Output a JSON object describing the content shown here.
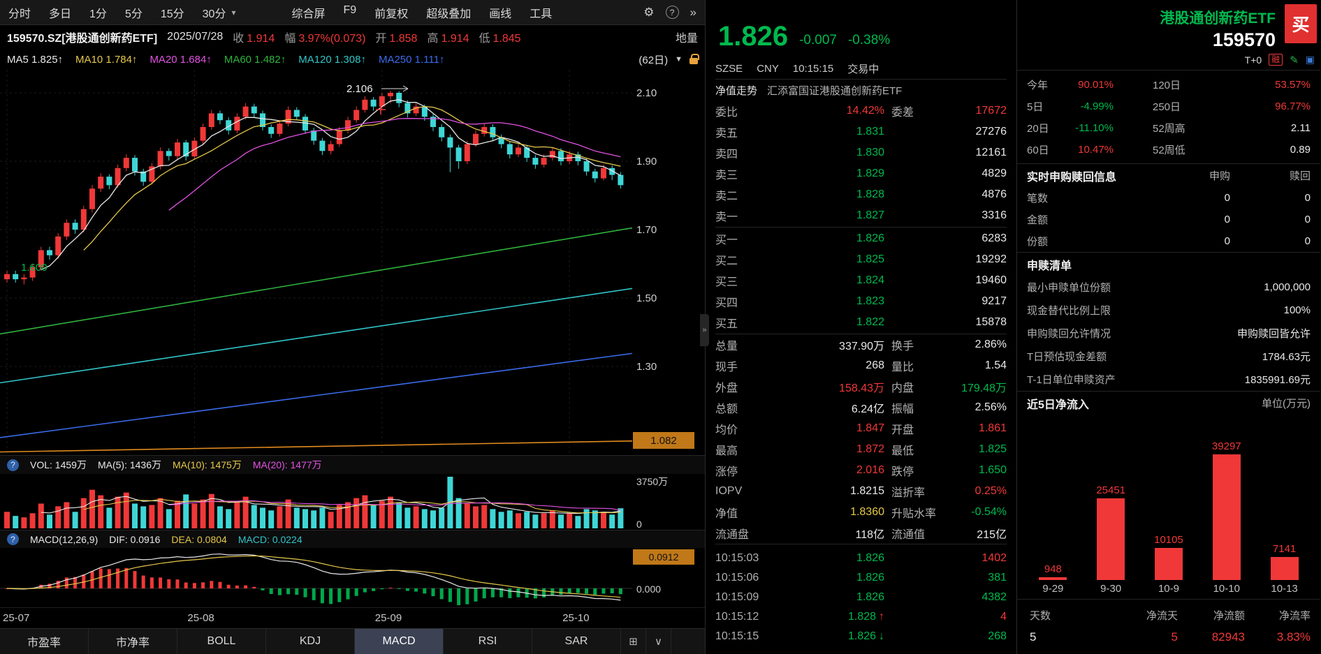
{
  "colors": {
    "up": "#f03838",
    "down": "#00b94e",
    "candle_down": "#3fd6d6",
    "ma5": "#e8e8e8",
    "ma10": "#e6c84a",
    "ma20": "#e352e3",
    "ma60": "#2eb33c",
    "ma120": "#31c5c9",
    "ma250": "#3a6bea",
    "cost_line": "#e08a1e",
    "badge_bg": "#c07818"
  },
  "toolbar": {
    "periods": [
      "分时",
      "多日",
      "1分",
      "5分",
      "15分",
      "30分"
    ],
    "tools": [
      "综合屏",
      "F9",
      "前复权",
      "超级叠加",
      "画线",
      "工具"
    ],
    "overflow": "»"
  },
  "info_bar": {
    "symbol": "159570.SZ[港股通创新药ETF]",
    "date": "2025/07/28",
    "fields": [
      {
        "label": "收",
        "value": "1.914"
      },
      {
        "label": "幅",
        "value": "3.97%(0.073)"
      },
      {
        "label": "开",
        "value": "1.858"
      },
      {
        "label": "高",
        "value": "1.914"
      },
      {
        "label": "低",
        "value": "1.845"
      }
    ],
    "tail": "地量"
  },
  "ma_bar": {
    "items": [
      {
        "label": "MA5",
        "value": "1.825↑",
        "color": "#e8e8e8"
      },
      {
        "label": "MA10",
        "value": "1.784↑",
        "color": "#e6c84a"
      },
      {
        "label": "MA20",
        "value": "1.684↑",
        "color": "#e352e3"
      },
      {
        "label": "MA60",
        "value": "1.482↑",
        "color": "#2eb33c"
      },
      {
        "label": "MA120",
        "value": "1.308↑",
        "color": "#31c5c9"
      },
      {
        "label": "MA250",
        "value": "1.111↑",
        "color": "#3a6bea"
      }
    ],
    "range_label": "(62日)"
  },
  "vol_header": {
    "label": "VOL:",
    "value": "1459万",
    "ma_items": [
      {
        "label": "MA(5):",
        "value": "1436万",
        "color": "#e8e8e8"
      },
      {
        "label": "MA(10):",
        "value": "1475万",
        "color": "#e6c84a"
      },
      {
        "label": "MA(20):",
        "value": "1477万",
        "color": "#e352e3"
      }
    ]
  },
  "macd_header": {
    "name": "MACD(12,26,9)",
    "items": [
      {
        "label": "DIF:",
        "value": "0.0916",
        "color": "#e8e8e8"
      },
      {
        "label": "DEA:",
        "value": "0.0804",
        "color": "#e6c84a"
      },
      {
        "label": "MACD:",
        "value": "0.0224",
        "color": "#31c5c9"
      }
    ]
  },
  "tabs": {
    "items": [
      "市盈率",
      "市净率",
      "BOLL",
      "KDJ",
      "MACD",
      "RSI",
      "SAR"
    ],
    "active": "MACD"
  },
  "chart_data": [
    {
      "type": "candlestick",
      "title": "港股通创新药ETF 日K线",
      "x_ticks": [
        {
          "label": "25-07",
          "index": 0
        },
        {
          "label": "25-08",
          "index": 22
        },
        {
          "label": "25-09",
          "index": 44
        },
        {
          "label": "25-10",
          "index": 66
        }
      ],
      "y_ticks": [
        2.1,
        1.9,
        1.7,
        1.5,
        1.3
      ],
      "annotations": {
        "peak": "2.106",
        "low_marker": "1.600",
        "cost_badge": "1.082"
      },
      "overlays": [
        {
          "name": "MA60",
          "color": "#2eb33c",
          "from": 1.395,
          "to": 1.705
        },
        {
          "name": "MA120",
          "color": "#31c5c9",
          "from": 1.252,
          "to": 1.528
        },
        {
          "name": "MA250",
          "color": "#3a6bea",
          "from": 1.092,
          "to": 1.338
        },
        {
          "name": "成本线",
          "color": "#e08a1e",
          "from": 1.05,
          "to": 1.082
        }
      ],
      "candles": [
        [
          1.555,
          1.58,
          1.545,
          1.57
        ],
        [
          1.57,
          1.58,
          1.545,
          1.555
        ],
        [
          1.555,
          1.57,
          1.54,
          1.56
        ],
        [
          1.56,
          1.6,
          1.55,
          1.59
        ],
        [
          1.59,
          1.65,
          1.58,
          1.64
        ],
        [
          1.64,
          1.65,
          1.612,
          1.625
        ],
        [
          1.625,
          1.69,
          1.615,
          1.68
        ],
        [
          1.68,
          1.73,
          1.67,
          1.72
        ],
        [
          1.72,
          1.73,
          1.688,
          1.7
        ],
        [
          1.7,
          1.77,
          1.692,
          1.76
        ],
        [
          1.76,
          1.83,
          1.75,
          1.82
        ],
        [
          1.82,
          1.865,
          1.81,
          1.855
        ],
        [
          1.855,
          1.862,
          1.818,
          1.83
        ],
        [
          1.83,
          1.89,
          1.822,
          1.88
        ],
        [
          1.88,
          1.92,
          1.87,
          1.91
        ],
        [
          1.91,
          1.918,
          1.858,
          1.87
        ],
        [
          1.87,
          1.878,
          1.828,
          1.84
        ],
        [
          1.84,
          1.895,
          1.832,
          1.885
        ],
        [
          1.885,
          1.94,
          1.876,
          1.93
        ],
        [
          1.93,
          1.938,
          1.902,
          1.915
        ],
        [
          1.915,
          1.965,
          1.906,
          1.955
        ],
        [
          1.955,
          1.962,
          1.902,
          1.914
        ],
        [
          1.914,
          1.97,
          1.906,
          1.96
        ],
        [
          1.96,
          2.01,
          1.95,
          2.0
        ],
        [
          2.0,
          2.05,
          1.992,
          2.04
        ],
        [
          2.04,
          2.048,
          2.008,
          2.02
        ],
        [
          2.02,
          2.028,
          1.978,
          1.99
        ],
        [
          1.99,
          2.04,
          1.982,
          2.03
        ],
        [
          2.03,
          2.07,
          2.022,
          2.06
        ],
        [
          2.06,
          2.068,
          2.028,
          2.04
        ],
        [
          2.04,
          2.048,
          1.99,
          2.0
        ],
        [
          2.0,
          2.008,
          1.968,
          1.98
        ],
        [
          1.98,
          2.02,
          1.972,
          2.01
        ],
        [
          2.01,
          2.06,
          2.002,
          2.05
        ],
        [
          2.05,
          2.058,
          2.02,
          2.03
        ],
        [
          2.03,
          2.038,
          1.98,
          1.99
        ],
        [
          1.99,
          1.998,
          1.948,
          1.96
        ],
        [
          1.96,
          1.968,
          1.918,
          1.93
        ],
        [
          1.93,
          1.96,
          1.92,
          1.95
        ],
        [
          1.95,
          2.0,
          1.942,
          1.99
        ],
        [
          1.99,
          2.03,
          1.982,
          2.02
        ],
        [
          2.02,
          2.06,
          2.012,
          2.05
        ],
        [
          2.05,
          2.09,
          2.042,
          2.08
        ],
        [
          2.08,
          2.088,
          2.048,
          2.06
        ],
        [
          2.06,
          2.1,
          2.052,
          2.09
        ],
        [
          2.09,
          2.106,
          2.07,
          2.1
        ],
        [
          2.1,
          2.105,
          2.058,
          2.07
        ],
        [
          2.07,
          2.078,
          2.028,
          2.04
        ],
        [
          2.04,
          2.07,
          2.032,
          2.06
        ],
        [
          2.06,
          2.066,
          2.018,
          2.03
        ],
        [
          2.03,
          2.038,
          1.988,
          2.0
        ],
        [
          2.0,
          2.008,
          1.958,
          1.97
        ],
        [
          1.97,
          1.978,
          1.868,
          1.94
        ],
        [
          1.94,
          1.948,
          1.878,
          1.9
        ],
        [
          1.9,
          1.96,
          1.892,
          1.95
        ],
        [
          1.95,
          1.99,
          1.942,
          1.98
        ],
        [
          1.98,
          2.01,
          1.972,
          2.0
        ],
        [
          2.0,
          2.008,
          1.958,
          1.97
        ],
        [
          1.97,
          1.978,
          1.938,
          1.95
        ],
        [
          1.95,
          1.958,
          1.908,
          1.92
        ],
        [
          1.92,
          1.95,
          1.912,
          1.94
        ],
        [
          1.94,
          1.948,
          1.898,
          1.91
        ],
        [
          1.91,
          1.918,
          1.878,
          1.89
        ],
        [
          1.89,
          1.92,
          1.882,
          1.91
        ],
        [
          1.91,
          1.94,
          1.902,
          1.93
        ],
        [
          1.93,
          1.938,
          1.888,
          1.9
        ],
        [
          1.9,
          1.93,
          1.892,
          1.92
        ],
        [
          1.92,
          1.928,
          1.888,
          1.9
        ],
        [
          1.9,
          1.908,
          1.858,
          1.87
        ],
        [
          1.87,
          1.878,
          1.838,
          1.85
        ],
        [
          1.85,
          1.89,
          1.844,
          1.88
        ],
        [
          1.88,
          1.888,
          1.845,
          1.86
        ],
        [
          1.86,
          1.868,
          1.82,
          1.83
        ]
      ]
    },
    {
      "type": "bar",
      "name": "VOL",
      "max": 3750,
      "y_ticks": [
        "3750万",
        "0"
      ],
      "values": [
        1200,
        900,
        800,
        1100,
        1800,
        1000,
        1600,
        1900,
        1200,
        2200,
        2800,
        2400,
        1500,
        2300,
        2600,
        1800,
        1600,
        1700,
        2200,
        1400,
        2000,
        2464,
        1800,
        2100,
        2500,
        1600,
        1400,
        1900,
        2300,
        1700,
        1500,
        1300,
        1600,
        2100,
        1500,
        1400,
        1300,
        1500,
        1200,
        1700,
        1900,
        2200,
        2400,
        1700,
        2000,
        2300,
        1900,
        1500,
        1600,
        1400,
        1300,
        1500,
        3750,
        2200,
        1800,
        1600,
        1700,
        1400,
        1200,
        1300,
        1100,
        1200,
        1000,
        1100,
        1300,
        1000,
        1100,
        900,
        1400,
        1300,
        1200,
        1000,
        1459
      ]
    },
    {
      "type": "macd",
      "name": "MACD(12,26,9)",
      "dif": 0.0916,
      "dea": 0.0804,
      "macd": 0.0224,
      "badge": "0.0912",
      "zero_label": "0.000"
    },
    {
      "type": "bar",
      "title": "近5日净流入",
      "unit": "单位(万元)",
      "categories": [
        "9-29",
        "9-30",
        "10-9",
        "10-10",
        "10-13"
      ],
      "values": [
        948,
        25451,
        10105,
        39297,
        7141
      ],
      "bar_color": "#f03838"
    }
  ],
  "quote": {
    "last": "1.826",
    "change": "-0.007",
    "change_pct": "-0.38%",
    "exchange": "SZSE",
    "currency": "CNY",
    "time": "10:15:15",
    "status": "交易中",
    "nav_label": "净值走势",
    "fund_name": "汇添富国证港股通创新药ETF",
    "weibi_label": "委比",
    "weibi": "14.42%",
    "weicha_label": "委差",
    "weicha": "17672",
    "asks": [
      {
        "label": "卖五",
        "price": "1.831",
        "vol": "27276"
      },
      {
        "label": "卖四",
        "price": "1.830",
        "vol": "12161"
      },
      {
        "label": "卖三",
        "price": "1.829",
        "vol": "4829"
      },
      {
        "label": "卖二",
        "price": "1.828",
        "vol": "4876"
      },
      {
        "label": "卖一",
        "price": "1.827",
        "vol": "3316"
      }
    ],
    "bids": [
      {
        "label": "买一",
        "price": "1.826",
        "vol": "6283"
      },
      {
        "label": "买二",
        "price": "1.825",
        "vol": "19292"
      },
      {
        "label": "买三",
        "price": "1.824",
        "vol": "19460"
      },
      {
        "label": "买四",
        "price": "1.823",
        "vol": "9217"
      },
      {
        "label": "买五",
        "price": "1.822",
        "vol": "15878"
      }
    ],
    "stats": [
      {
        "l1": "总量",
        "v1": "337.90万",
        "c1": "w",
        "l2": "换手",
        "v2": "2.86%",
        "c2": "w"
      },
      {
        "l1": "现手",
        "v1": "268",
        "c1": "w",
        "l2": "量比",
        "v2": "1.54",
        "c2": "w"
      },
      {
        "l1": "外盘",
        "v1": "158.43万",
        "c1": "r",
        "l2": "内盘",
        "v2": "179.48万",
        "c2": "g"
      },
      {
        "l1": "总额",
        "v1": "6.24亿",
        "c1": "w",
        "l2": "振幅",
        "v2": "2.56%",
        "c2": "w"
      },
      {
        "l1": "均价",
        "v1": "1.847",
        "c1": "r",
        "l2": "开盘",
        "v2": "1.861",
        "c2": "r"
      },
      {
        "l1": "最高",
        "v1": "1.872",
        "c1": "r",
        "l2": "最低",
        "v2": "1.825",
        "c2": "g"
      },
      {
        "l1": "涨停",
        "v1": "2.016",
        "c1": "r",
        "l2": "跌停",
        "v2": "1.650",
        "c2": "g"
      },
      {
        "l1": "IOPV",
        "v1": "1.8215",
        "c1": "w",
        "l2": "溢折率",
        "v2": "0.25%",
        "c2": "r"
      },
      {
        "l1": "净值",
        "v1": "1.8360",
        "c1": "y",
        "l2": "升贴水率",
        "v2": "-0.54%",
        "c2": "g"
      },
      {
        "l1": "流通盘",
        "v1": "118亿",
        "c1": "w",
        "l2": "流通值",
        "v2": "215亿",
        "c2": "w"
      }
    ],
    "ticks": [
      {
        "time": "10:15:03",
        "price": "1.826",
        "pc": "g",
        "arrow": "",
        "ac": "",
        "vol": "1402",
        "vc": "r"
      },
      {
        "time": "10:15:06",
        "price": "1.826",
        "pc": "g",
        "arrow": "",
        "ac": "",
        "vol": "381",
        "vc": "g"
      },
      {
        "time": "10:15:09",
        "price": "1.826",
        "pc": "g",
        "arrow": "",
        "ac": "",
        "vol": "4382",
        "vc": "g"
      },
      {
        "time": "10:15:12",
        "price": "1.828",
        "pc": "g",
        "arrow": "↑",
        "ac": "r",
        "vol": "4",
        "vc": "r"
      },
      {
        "time": "10:15:15",
        "price": "1.826",
        "pc": "g",
        "arrow": "↓",
        "ac": "g",
        "vol": "268",
        "vc": "g"
      }
    ]
  },
  "etf": {
    "title": "港股通创新药ETF",
    "code": "159570",
    "buy_label": "买",
    "t0_label": "T+0",
    "margin_badge": "融",
    "perf": [
      {
        "l1": "今年",
        "v1": "90.01%",
        "c1": "r",
        "l2": "120日",
        "v2": "53.57%",
        "c2": "r"
      },
      {
        "l1": "5日",
        "v1": "-4.99%",
        "c1": "g",
        "l2": "250日",
        "v2": "96.77%",
        "c2": "r"
      },
      {
        "l1": "20日",
        "v1": "-11.10%",
        "c1": "g",
        "l2": "52周高",
        "v2": "2.11",
        "c2": "w"
      },
      {
        "l1": "60日",
        "v1": "10.47%",
        "c1": "r",
        "l2": "52周低",
        "v2": "0.89",
        "c2": "w"
      }
    ],
    "realtime": {
      "title": "实时申购赎回信息",
      "col1": "申购",
      "col2": "赎回",
      "rows": [
        {
          "label": "笔数",
          "v1": "0",
          "v2": "0"
        },
        {
          "label": "金额",
          "v1": "0",
          "v2": "0"
        },
        {
          "label": "份额",
          "v1": "0",
          "v2": "0"
        }
      ]
    },
    "subscription": {
      "title": "申赎清单",
      "rows": [
        {
          "label": "最小申赎单位份额",
          "value": "1,000,000"
        },
        {
          "label": "现金替代比例上限",
          "value": "100%"
        },
        {
          "label": "申购赎回允许情况",
          "value": "申购赎回皆允许"
        },
        {
          "label": "T日预估现金差额",
          "value": "1784.63元"
        },
        {
          "label": "T-1日单位申赎资产",
          "value": "1835991.69元"
        }
      ]
    },
    "footer": {
      "labels": [
        "天数",
        "净流天",
        "净流额",
        "净流率"
      ],
      "values": [
        {
          "v": "5",
          "c": "w"
        },
        {
          "v": "5",
          "c": "r"
        },
        {
          "v": "82943",
          "c": "r"
        },
        {
          "v": "3.83%",
          "c": "r"
        }
      ]
    }
  }
}
